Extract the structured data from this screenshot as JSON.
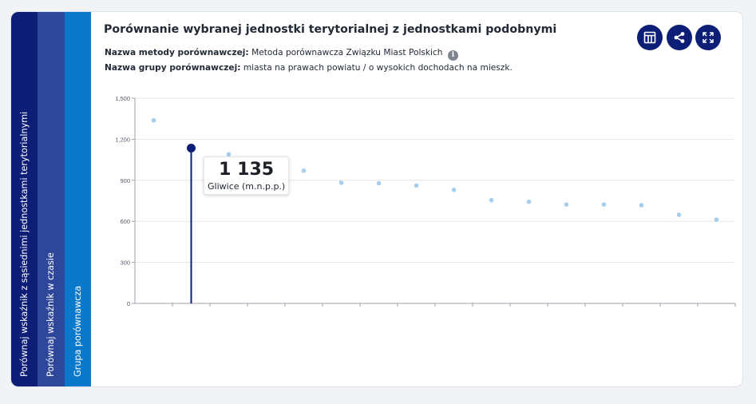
{
  "tabs": [
    {
      "label": "Porównaj wskaźnik z sąsiednimi jednostkami terytorialnymi"
    },
    {
      "label": "Porównaj wskaźnik w czasie"
    },
    {
      "label": "Grupa porównawcza"
    }
  ],
  "header": {
    "title": "Porównanie wybranej jednostki terytorialnej z jednostkami podobnymi",
    "method_label": "Nazwa metody porównawczej:",
    "method_value": "Metoda porównawcza Związku Miast Polskich",
    "info_glyph": "i",
    "group_label": "Nazwa grupy porównawczej:",
    "group_value": "miasta na prawach powiatu / o wysokich dochodach na mieszk."
  },
  "toolbar": {
    "icons": [
      "table-icon",
      "share-icon",
      "fullscreen-icon"
    ]
  },
  "tooltip": {
    "value": "1 135",
    "label": "Gliwice (m.n.p.p.)"
  },
  "colors": {
    "highlight": "#0d1e77",
    "point": "#a5cfee",
    "grid": "#e6e6e6"
  },
  "chart_data": {
    "type": "scatter",
    "ylim": [
      0,
      1500
    ],
    "yticks": [
      "0",
      "300",
      "600",
      "900",
      "1,200",
      "1,500"
    ],
    "ytick_values": [
      0,
      300,
      600,
      900,
      1200,
      1500
    ],
    "values": [
      1338,
      1135,
      1090,
      1005,
      970,
      882,
      878,
      862,
      830,
      755,
      743,
      723,
      723,
      718,
      648,
      612
    ],
    "highlight_index": 1,
    "grid": true
  }
}
